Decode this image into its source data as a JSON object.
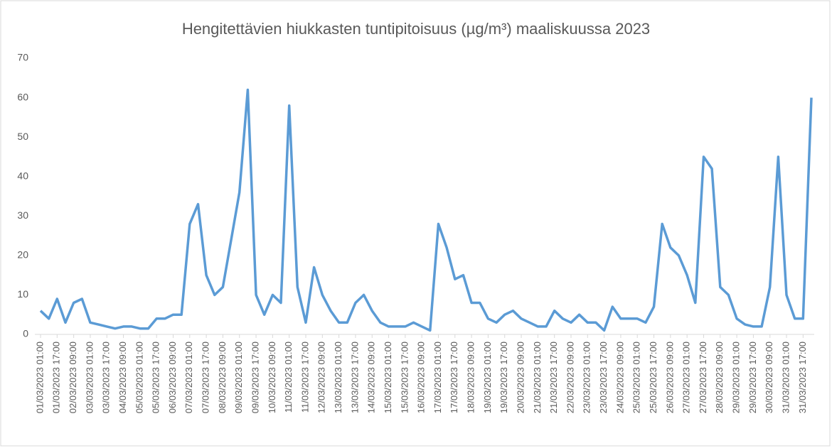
{
  "chart_data": {
    "type": "line",
    "title": "Hengitettävien hiukkasten tuntipitoisuus (µg/m³) maaliskuussa 2023",
    "categories": [
      "01/03/2023 01:00",
      null,
      "01/03/2023 17:00",
      null,
      "02/03/2023 09:00",
      null,
      "03/03/2023 01:00",
      null,
      "03/03/2023 17:00",
      null,
      "04/03/2023 09:00",
      null,
      "05/03/2023 01:00",
      null,
      "05/03/2023 17:00",
      null,
      "06/03/2023 09:00",
      null,
      "07/03/2023 01:00",
      null,
      "07/03/2023 17:00",
      null,
      "08/03/2023 09:00",
      null,
      "09/03/2023 01:00",
      null,
      "09/03/2023 17:00",
      null,
      "10/03/2023 09:00",
      null,
      "11/03/2023 01:00",
      null,
      "11/03/2023 17:00",
      null,
      "12/03/2023 09:00",
      null,
      "13/03/2023 01:00",
      null,
      "13/03/2023 17:00",
      null,
      "14/03/2023 09:00",
      null,
      "15/03/2023 01:00",
      null,
      "15/03/2023 17:00",
      null,
      "16/03/2023 09:00",
      null,
      "17/03/2023 01:00",
      null,
      "17/03/2023 17:00",
      null,
      "18/03/2023 09:00",
      null,
      "19/03/2023 01:00",
      null,
      "19/03/2023 17:00",
      null,
      "20/03/2023 09:00",
      null,
      "21/03/2023 01:00",
      null,
      "21/03/2023 17:00",
      null,
      "22/03/2023 09:00",
      null,
      "23/03/2023 01:00",
      null,
      "23/03/2023 17:00",
      null,
      "24/03/2023 09:00",
      null,
      "25/03/2023 01:00",
      null,
      "25/03/2023 17:00",
      null,
      "26/03/2023 09:00",
      null,
      "27/03/2023 01:00",
      null,
      "27/03/2023 17:00",
      null,
      "28/03/2023 09:00",
      null,
      "29/03/2023 01:00",
      null,
      "29/03/2023 17:00",
      null,
      "30/03/2023 09:00",
      null,
      "31/03/2023 01:00",
      null,
      "31/03/2023 17:00",
      null
    ],
    "values": [
      6,
      4,
      9,
      3,
      8,
      9,
      3,
      2.5,
      2,
      1.5,
      2,
      2,
      1.5,
      1.5,
      4,
      4,
      5,
      5,
      28,
      33,
      15,
      10,
      12,
      24,
      36,
      62,
      10,
      5,
      10,
      8,
      58,
      12,
      3,
      17,
      10,
      6,
      3,
      3,
      8,
      10,
      6,
      3,
      2,
      2,
      2,
      3,
      2,
      1,
      28,
      22,
      14,
      15,
      8,
      8,
      4,
      3,
      5,
      6,
      4,
      3,
      2,
      2,
      6,
      4,
      3,
      5,
      3,
      3,
      1,
      7,
      4,
      4,
      4,
      3,
      7,
      28,
      22,
      20,
      15,
      8,
      45,
      42,
      12,
      10,
      4,
      2.5,
      2,
      2,
      12,
      45,
      10,
      4,
      4,
      60
    ],
    "color": "#5b9bd5",
    "ylim": [
      0,
      70
    ],
    "yticks": [
      0,
      10,
      20,
      30,
      40,
      50,
      60,
      70
    ],
    "grid": false
  }
}
